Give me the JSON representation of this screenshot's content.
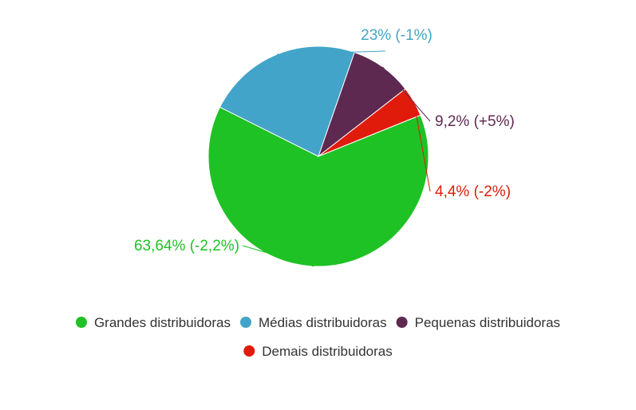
{
  "chart_data": {
    "type": "pie",
    "categories": [
      "Grandes distribuidoras",
      "Médias distribuidoras",
      "Pequenas distribuidoras",
      "Demais distribuidoras"
    ],
    "values": [
      63.64,
      23,
      9.2,
      4.4
    ],
    "data_labels": [
      "63,64% (-2,2%)",
      "23% (-1%)",
      "9,2% (+5%)",
      "4,4% (-2%)"
    ],
    "colors": [
      "#1ec224",
      "#42a4c8",
      "#5e2950",
      "#e01b0c"
    ],
    "start_angle_deg": -22,
    "direction": "clockwise",
    "legend_position": "bottom"
  }
}
